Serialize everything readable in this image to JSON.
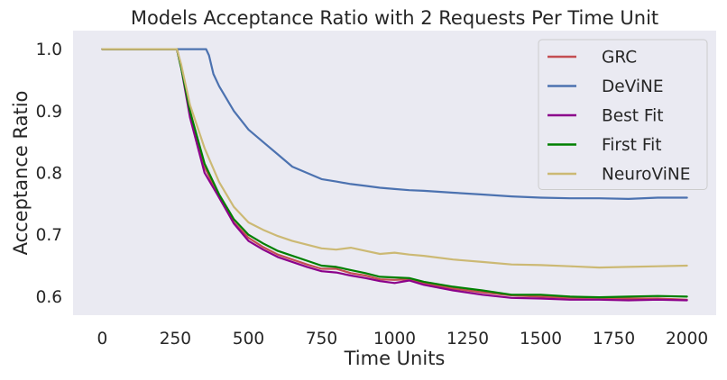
{
  "chart_data": {
    "type": "line",
    "title": "Models Acceptance Ratio with 2 Requests Per Time Unit",
    "xlabel": "Time Units",
    "ylabel": "Acceptance Ratio",
    "xlim": [
      -100,
      2100
    ],
    "ylim": [
      0.57,
      1.03
    ],
    "xticks": [
      0,
      250,
      500,
      750,
      1000,
      1250,
      1500,
      1750,
      2000
    ],
    "xtick_labels": [
      "0",
      "250",
      "500",
      "750",
      "1000",
      "1250",
      "1500",
      "1750",
      "2000"
    ],
    "yticks": [
      0.6,
      0.7,
      0.8,
      0.9,
      1.0
    ],
    "ytick_labels": [
      "0.6",
      "0.7",
      "0.8",
      "0.9",
      "1.0"
    ],
    "grid": false,
    "background": "#eaeaf2",
    "legend_position": "top-right",
    "series": [
      {
        "name": "GRC",
        "color": "#c44e52",
        "x": [
          0,
          255,
          270,
          300,
          350,
          400,
          450,
          500,
          550,
          600,
          650,
          700,
          750,
          800,
          850,
          900,
          950,
          1000,
          1050,
          1100,
          1200,
          1300,
          1400,
          1500,
          1600,
          1700,
          1800,
          1900,
          2000
        ],
        "y": [
          1.0,
          1.0,
          0.97,
          0.9,
          0.81,
          0.76,
          0.72,
          0.695,
          0.68,
          0.668,
          0.66,
          0.652,
          0.645,
          0.645,
          0.638,
          0.634,
          0.628,
          0.627,
          0.628,
          0.622,
          0.613,
          0.607,
          0.602,
          0.6,
          0.598,
          0.598,
          0.597,
          0.597,
          0.595
        ]
      },
      {
        "name": "DeViNE",
        "color": "#4c72b0",
        "x": [
          0,
          355,
          365,
          380,
          400,
          450,
          500,
          550,
          600,
          650,
          700,
          750,
          800,
          850,
          900,
          950,
          1000,
          1050,
          1100,
          1200,
          1300,
          1400,
          1500,
          1600,
          1700,
          1800,
          1900,
          2000
        ],
        "y": [
          1.0,
          1.0,
          0.99,
          0.96,
          0.94,
          0.9,
          0.87,
          0.85,
          0.83,
          0.81,
          0.8,
          0.79,
          0.786,
          0.782,
          0.779,
          0.776,
          0.774,
          0.772,
          0.771,
          0.768,
          0.765,
          0.762,
          0.76,
          0.759,
          0.759,
          0.758,
          0.76,
          0.76
        ]
      },
      {
        "name": "Best Fit",
        "color": "#8b008b",
        "x": [
          0,
          255,
          270,
          300,
          350,
          400,
          450,
          500,
          550,
          600,
          650,
          700,
          750,
          800,
          850,
          900,
          950,
          1000,
          1050,
          1100,
          1200,
          1300,
          1400,
          1500,
          1600,
          1700,
          1800,
          1900,
          2000
        ],
        "y": [
          1.0,
          1.0,
          0.97,
          0.89,
          0.8,
          0.76,
          0.718,
          0.69,
          0.676,
          0.664,
          0.656,
          0.648,
          0.641,
          0.639,
          0.634,
          0.63,
          0.625,
          0.622,
          0.626,
          0.619,
          0.61,
          0.603,
          0.598,
          0.597,
          0.595,
          0.595,
          0.594,
          0.595,
          0.594
        ]
      },
      {
        "name": "First Fit",
        "color": "#008000",
        "x": [
          0,
          255,
          270,
          300,
          350,
          400,
          450,
          500,
          550,
          600,
          650,
          700,
          750,
          800,
          850,
          900,
          950,
          1000,
          1050,
          1100,
          1200,
          1300,
          1400,
          1500,
          1600,
          1700,
          1800,
          1900,
          2000
        ],
        "y": [
          1.0,
          1.0,
          0.97,
          0.9,
          0.815,
          0.765,
          0.725,
          0.7,
          0.686,
          0.674,
          0.666,
          0.658,
          0.65,
          0.648,
          0.643,
          0.638,
          0.632,
          0.631,
          0.63,
          0.624,
          0.616,
          0.61,
          0.603,
          0.603,
          0.6,
          0.599,
          0.6,
          0.601,
          0.6
        ]
      },
      {
        "name": "NeuroViNE",
        "color": "#ccb974",
        "x": [
          0,
          255,
          270,
          300,
          350,
          400,
          450,
          500,
          550,
          600,
          650,
          700,
          750,
          800,
          850,
          900,
          950,
          1000,
          1050,
          1100,
          1200,
          1300,
          1400,
          1500,
          1600,
          1700,
          1800,
          1900,
          2000
        ],
        "y": [
          1.0,
          1.0,
          0.975,
          0.91,
          0.84,
          0.785,
          0.745,
          0.72,
          0.708,
          0.698,
          0.69,
          0.684,
          0.678,
          0.676,
          0.679,
          0.674,
          0.669,
          0.671,
          0.668,
          0.666,
          0.66,
          0.656,
          0.652,
          0.651,
          0.649,
          0.647,
          0.648,
          0.649,
          0.65
        ]
      }
    ]
  }
}
